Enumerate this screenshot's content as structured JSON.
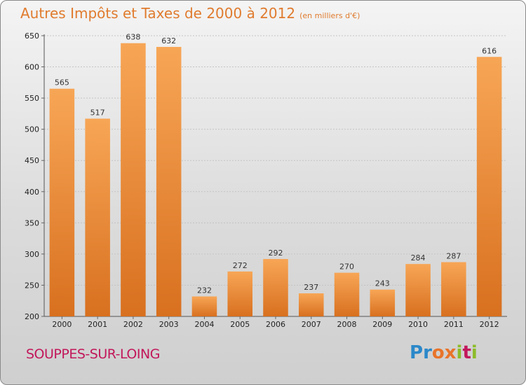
{
  "title": "Autres Impôts et Taxes de 2000 à 2012",
  "subtitle": "(en milliers d'€)",
  "location": "SOUPPES-SUR-LOING",
  "logo": {
    "letters": [
      "P",
      "r",
      "o",
      "x",
      "i",
      "t",
      "i"
    ],
    "colors": [
      "#2b88c9",
      "#2b88c9",
      "#e8742a",
      "#e8742a",
      "#8cbc2a",
      "#c2185b",
      "#8cbc2a"
    ]
  },
  "colors": {
    "bar_light": "#f7a656",
    "bar_dark": "#d8701f",
    "title": "#e07b2e",
    "location": "#c2185b"
  },
  "chart_data": {
    "type": "bar",
    "title": "Autres Impôts et Taxes de 2000 à 2012",
    "subtitle": "(en milliers d'€)",
    "categories": [
      "2000",
      "2001",
      "2002",
      "2003",
      "2004",
      "2005",
      "2006",
      "2007",
      "2008",
      "2009",
      "2010",
      "2011",
      "2012"
    ],
    "values": [
      565,
      517,
      638,
      632,
      232,
      272,
      292,
      237,
      270,
      243,
      284,
      287,
      616
    ],
    "ylim": [
      200,
      650
    ],
    "yticks": [
      200,
      250,
      300,
      350,
      400,
      450,
      500,
      550,
      600,
      650
    ],
    "grid": true,
    "xlabel": "",
    "ylabel": ""
  }
}
